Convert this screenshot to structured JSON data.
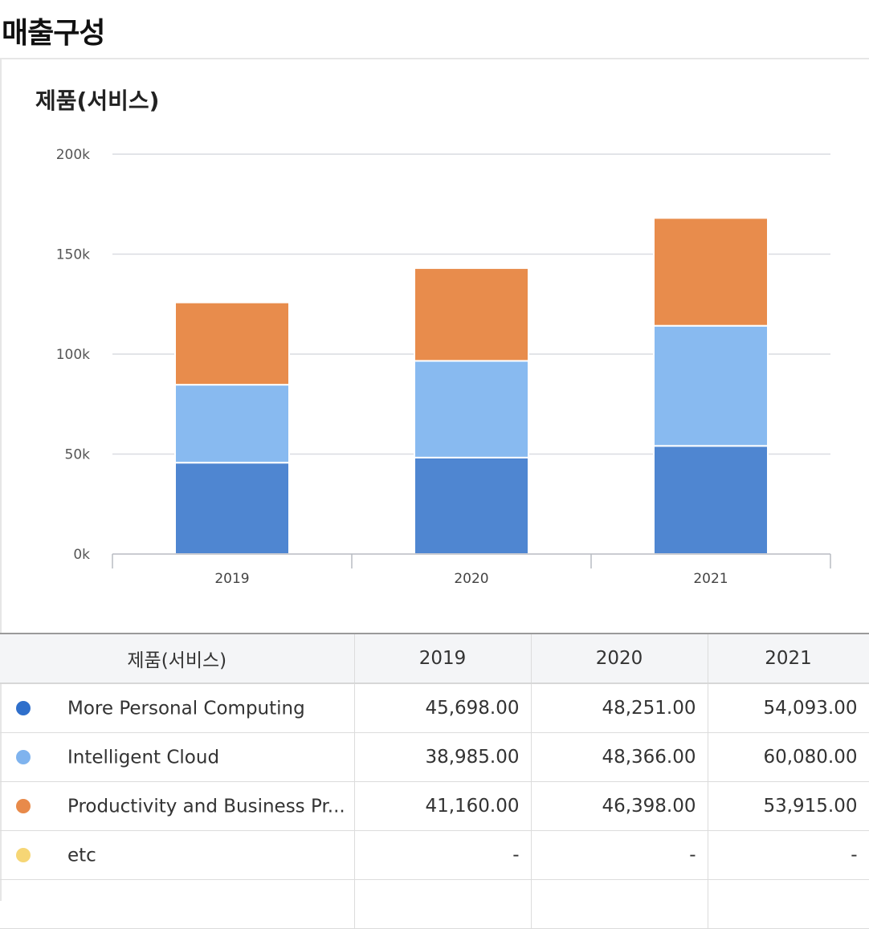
{
  "page_title": "매출구성",
  "chart_data": {
    "type": "bar",
    "stacked": true,
    "title": "제품(서비스)",
    "categories": [
      "2019",
      "2020",
      "2021"
    ],
    "ylim": [
      0,
      200000
    ],
    "yticks": [
      0,
      50000,
      100000,
      150000,
      200000
    ],
    "ytick_labels": [
      "0k",
      "50k",
      "100k",
      "150k",
      "200k"
    ],
    "series": [
      {
        "name": "More Personal Computing",
        "color": "#4f86d1",
        "values": [
          45698,
          48251,
          54093
        ]
      },
      {
        "name": "Intelligent Cloud",
        "color": "#88baf0",
        "values": [
          38985,
          48366,
          60080
        ]
      },
      {
        "name": "Productivity and Business Pr...",
        "color": "#e88c4c",
        "values": [
          41160,
          46398,
          53915
        ]
      },
      {
        "name": "etc",
        "color": "#f7d46e",
        "values": [
          0,
          0,
          0
        ]
      }
    ],
    "grid": true,
    "legend": "table-below"
  },
  "table": {
    "header": [
      "제품(서비스)",
      "2019",
      "2020",
      "2021"
    ],
    "rows": [
      {
        "name": "More Personal Computing",
        "color": "#2f6fcb",
        "cells": [
          "45,698.00",
          "48,251.00",
          "54,093.00"
        ]
      },
      {
        "name": "Intelligent Cloud",
        "color": "#7fb3ee",
        "cells": [
          "38,985.00",
          "48,366.00",
          "60,080.00"
        ]
      },
      {
        "name": "Productivity and Business Pr...",
        "color": "#e88a4a",
        "cells": [
          "41,160.00",
          "46,398.00",
          "53,915.00"
        ]
      },
      {
        "name": "etc",
        "color": "#f6d675",
        "cells": [
          "-",
          "-",
          "-"
        ]
      }
    ]
  }
}
